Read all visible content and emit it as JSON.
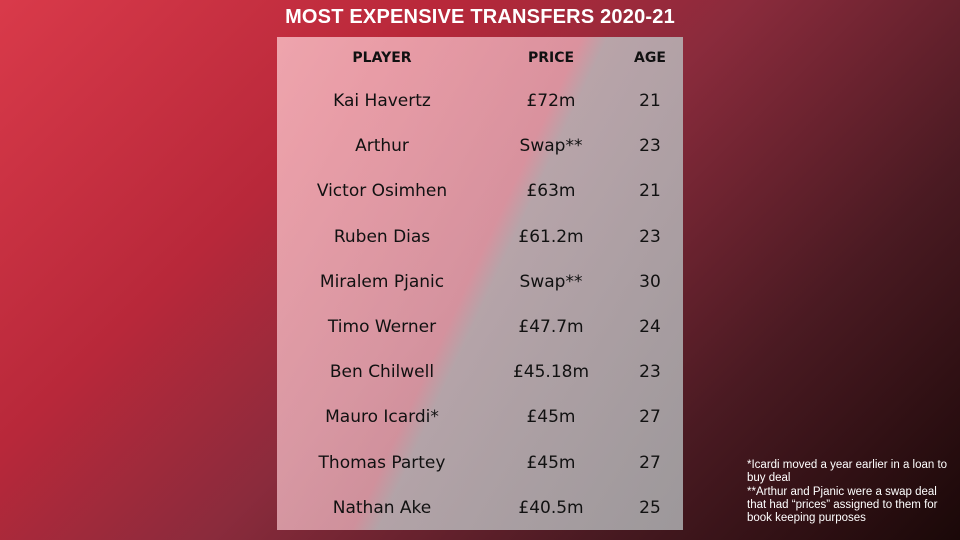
{
  "title": "MOST EXPENSIVE TRANSFERS 2020-21",
  "table": {
    "headers": [
      "PLAYER",
      "PRICE",
      "AGE"
    ],
    "rows": [
      {
        "player": "Kai Havertz",
        "price": "£72m",
        "age": "21"
      },
      {
        "player": "Arthur",
        "price": "Swap**",
        "age": "23"
      },
      {
        "player": "Victor Osimhen",
        "price": "£63m",
        "age": "21"
      },
      {
        "player": "Ruben Dias",
        "price": "£61.2m",
        "age": "23"
      },
      {
        "player": "Miralem Pjanic",
        "price": "Swap**",
        "age": "30"
      },
      {
        "player": "Timo Werner",
        "price": "£47.7m",
        "age": "24"
      },
      {
        "player": "Ben Chilwell",
        "price": "£45.18m",
        "age": "23"
      },
      {
        "player": "Mauro Icardi*",
        "price": "£45m",
        "age": "27"
      },
      {
        "player": "Thomas Partey",
        "price": "£45m",
        "age": "27"
      },
      {
        "player": "Nathan Ake",
        "price": "£40.5m",
        "age": "25"
      }
    ]
  },
  "footnotes": [
    "*Icardi moved a year earlier in a loan to buy deal",
    "**Arthur and Pjanic were a swap deal that had “prices” assigned to them for book keeping purposes"
  ],
  "colors": {
    "background_red": "#d93a4a",
    "background_dark": "#1a0808",
    "title_text": "#ffffff"
  }
}
